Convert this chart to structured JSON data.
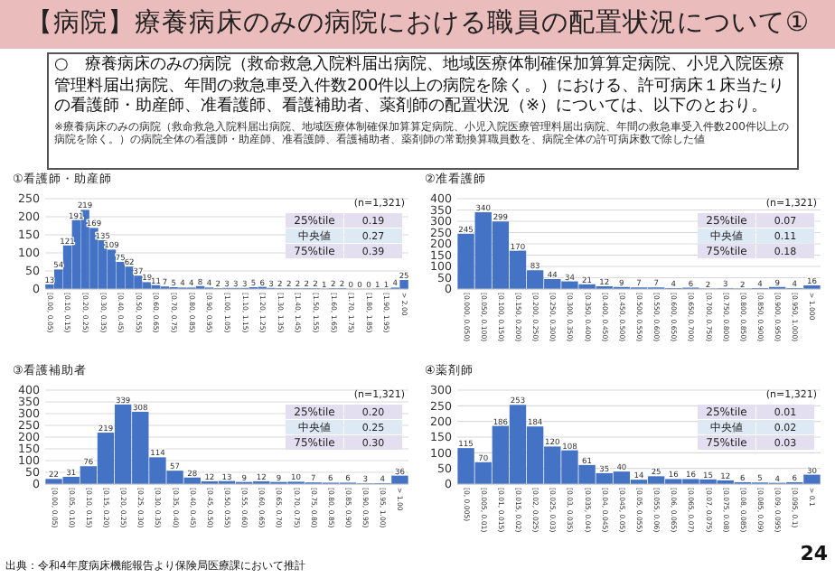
{
  "chart_data": [
    {
      "type": "other",
      "title": "【病院】療養病床のみの病院における職員の配置状況について①",
      "subtitle": "○　療養病床のみの病院（救命救急入院料届出病院、地域医療体制確保加算算定病院、小児入院医療管理料届出病院、年間の救急車受入件数200件以上の病院を除く。）における、許可病床１床当たりの看護師・助産師、准看護師、看護補助者、薬剤師の配置状況（※）については、以下のとおり。",
      "annotations": [
        "※療養病床のみの病院（救命救急入院料届出病院、地域医療体制確保加算算定病院、小児入院医療管理料届出病院、年間の救急車受入件数200件以上の病院を除く。）の病院全体の看護師・助産師、准看護師、看護補助者、薬剤師の常勤換算職員数を、病院全体の許可病床数で除した値",
        "出典：令和4年度病床機能報告より保険局医療課において推計",
        "24"
      ]
    },
    {
      "type": "bar",
      "title": "①看護師・助産師",
      "categories": [
        "[0.00, 0.05)",
        null,
        "[0.10, 0.15)",
        null,
        "[0.20, 0.25)",
        null,
        "[0.30, 0.35)",
        null,
        "[0.40, 0.45)",
        null,
        "[0.50, 0.55)",
        null,
        "[0.60, 0.65)",
        null,
        "[0.70, 0.75)",
        null,
        "[0.80, 0.85)",
        null,
        "[0.90, 0.95)",
        null,
        "[1.00, 1.05)",
        null,
        "[1.10, 1.15)",
        null,
        "[1.20, 1.25)",
        null,
        "[1.30, 1.35)",
        null,
        "[1.40, 1.45)",
        null,
        "[1.50, 1.55)",
        null,
        "[1.60, 1.65)",
        null,
        "[1.70, 1.75)",
        null,
        "[1.80, 1.85)",
        null,
        "[1.90, 1.95)",
        null,
        "> 2.00"
      ],
      "values": [
        13,
        54,
        121,
        191,
        219,
        169,
        135,
        109,
        75,
        62,
        37,
        19,
        11,
        7,
        5,
        4,
        4,
        8,
        4,
        2,
        3,
        3,
        3,
        5,
        6,
        3,
        2,
        2,
        2,
        2,
        2,
        1,
        2,
        2,
        0,
        0,
        0,
        1,
        1,
        4,
        25
      ],
      "color": "#4472c4",
      "ylim": [
        0,
        250
      ],
      "yticks": [
        0,
        50,
        100,
        150,
        200,
        250
      ],
      "grid": "y",
      "data_labels": true,
      "annotations": [
        "(n=1,321)",
        "25%tile",
        "0.19",
        "中央値",
        "0.27",
        "75%tile",
        "0.39"
      ]
    },
    {
      "type": "bar",
      "title": "②准看護師",
      "categories": [
        "[0.000, 0.050)",
        "[0.050, 0.100)",
        "[0.100, 0.150)",
        "[0.150, 0.200)",
        "[0.200, 0.250)",
        "[0.250, 0.300)",
        "[0.300, 0.350)",
        "[0.350, 0.400)",
        "[0.400, 0.450)",
        "[0.450, 0.500)",
        "[0.500, 0.550)",
        "[0.550, 0.600)",
        "[0.600, 0.650)",
        "[0.650, 0.700)",
        "[0.700, 0.750)",
        "[0.750, 0.800)",
        "[0.800, 0.850)",
        "[0.850, 0.900)",
        "[0.900, 0.950)",
        "[0.950, 1.000)",
        "> 1.000"
      ],
      "values": [
        245,
        340,
        299,
        170,
        83,
        44,
        34,
        21,
        12,
        9,
        7,
        7,
        4,
        6,
        2,
        3,
        2,
        4,
        9,
        4,
        16
      ],
      "color": "#4472c4",
      "ylim": [
        0,
        400
      ],
      "yticks": [
        0,
        50,
        100,
        150,
        200,
        250,
        300,
        350,
        400
      ],
      "grid": "y",
      "data_labels": true,
      "annotations": [
        "(n=1,321)",
        "25%tile",
        "0.07",
        "中央値",
        "0.11",
        "75%tile",
        "0.18"
      ]
    },
    {
      "type": "bar",
      "title": "③看護補助者",
      "categories": [
        "[0.00, 0.05)",
        "[0.05, 0.10)",
        "[0.10, 0.15)",
        "[0.15, 0.20)",
        "[0.20, 0.25)",
        "[0.25, 0.30)",
        "[0.30, 0.35)",
        "[0.35, 0.40)",
        "[0.40, 0.45)",
        "[0.45, 0.50)",
        "[0.50, 0.55)",
        "[0.55, 0.60)",
        "[0.60, 0.65)",
        "[0.65, 0.70)",
        "[0.70, 0.75)",
        "[0.75, 0.80)",
        "[0.80, 0.85)",
        "[0.85, 0.90)",
        "[0.90, 0.95)",
        "[0.95, 1.00)",
        "> 1.00"
      ],
      "values": [
        22,
        31,
        76,
        219,
        339,
        308,
        114,
        57,
        28,
        12,
        13,
        9,
        12,
        9,
        10,
        7,
        6,
        6,
        3,
        4,
        36
      ],
      "color": "#4472c4",
      "ylim": [
        0,
        400
      ],
      "yticks": [
        0,
        50,
        100,
        150,
        200,
        250,
        300,
        350,
        400
      ],
      "grid": "y",
      "data_labels": true,
      "annotations": [
        "(n=1,321)",
        "25%tile",
        "0.20",
        "中央値",
        "0.25",
        "75%tile",
        "0.30"
      ]
    },
    {
      "type": "bar",
      "title": "④薬剤師",
      "categories": [
        "[0, 0.005)",
        "[0.005, 0.01)",
        "[0.01, 0.015)",
        "[0.015, 0.02)",
        "[0.02, 0.025)",
        "[0.025, 0.03)",
        "[0.03, 0.035)",
        "[0.035, 0.04)",
        "[0.04, 0.045)",
        "[0.045, 0.05)",
        "[0.05, 0.055)",
        "[0.055, 0.06)",
        "[0.06, 0.065)",
        "[0.065, 0.07)",
        "[0.07, 0.075)",
        "[0.075, 0.08)",
        "[0.08, 0.085)",
        "[0.085, 0.09)",
        "[0.09, 0.095)",
        "[0.095, 0.1)",
        "> 0.1"
      ],
      "values": [
        115,
        70,
        186,
        253,
        184,
        120,
        108,
        61,
        35,
        40,
        14,
        25,
        16,
        16,
        15,
        12,
        6,
        5,
        4,
        6,
        30
      ],
      "color": "#4472c4",
      "ylim": [
        0,
        300
      ],
      "yticks": [
        0,
        50,
        100,
        150,
        200,
        250,
        300
      ],
      "grid": "y",
      "data_labels": true,
      "annotations": [
        "(n=1,321)",
        "25%tile",
        "0.01",
        "中央値",
        "0.02",
        "75%tile",
        "0.03"
      ]
    }
  ]
}
